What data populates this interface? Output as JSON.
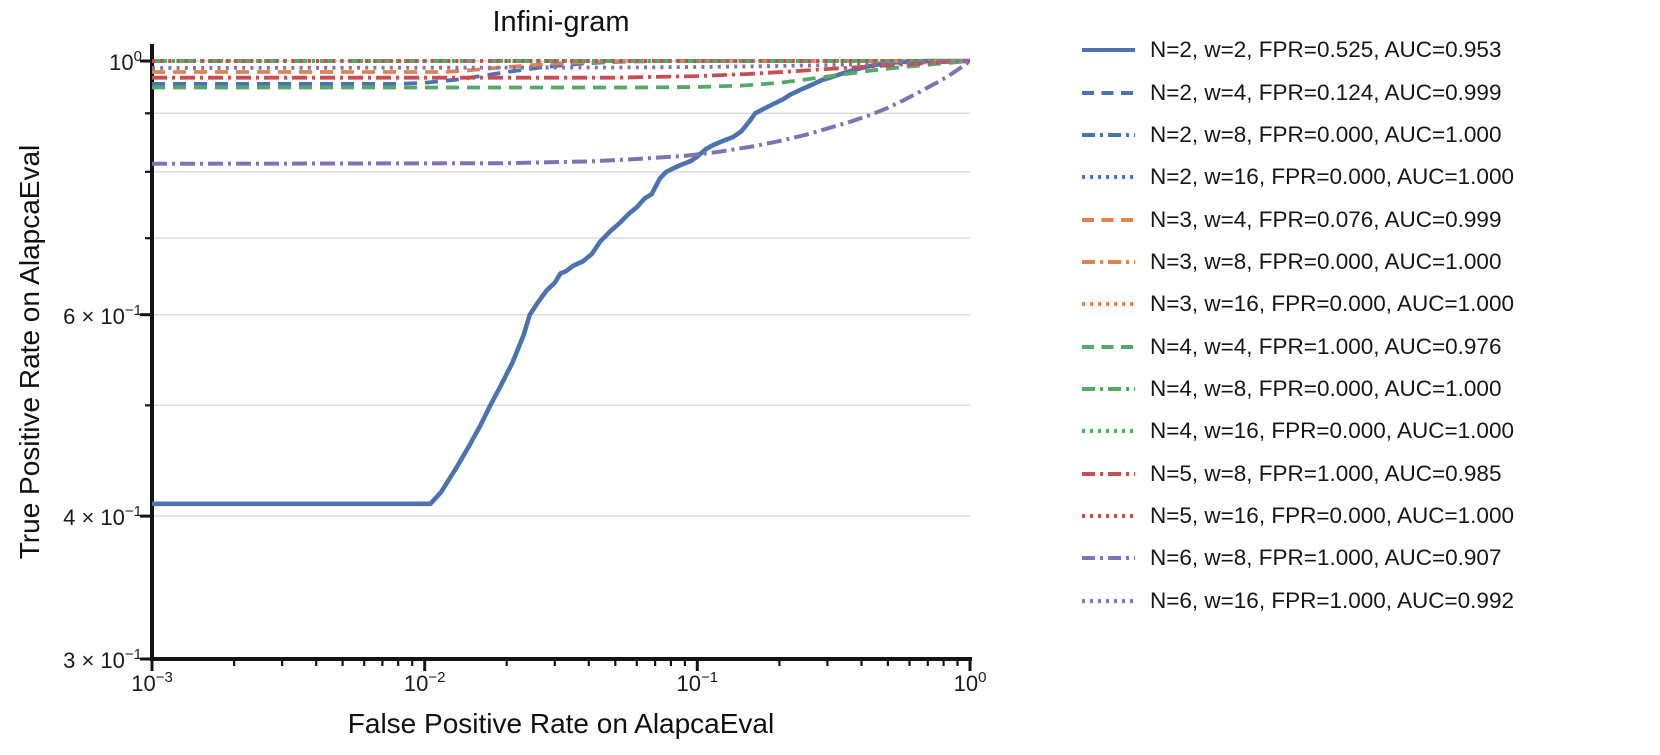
{
  "chart_data": {
    "type": "line",
    "title": "Infini-gram",
    "xlabel": "False Positive Rate on AlapcaEval",
    "ylabel": "True Positive Rate on AlapcaEval",
    "x_scale": "log",
    "y_scale": "log",
    "xlim": [
      0.001,
      1.0
    ],
    "ylim": [
      0.3,
      1.0
    ],
    "grid": "horizontal gridlines only",
    "legend_position": "outside right, no frame",
    "colors": {
      "blue": "#4C72B0",
      "orange": "#DD8452",
      "green": "#55A868",
      "red": "#C44E52",
      "purple": "#8172B3",
      "gridline": "#d9d9d9",
      "spine": "#141414",
      "text": "#1a1a1a"
    },
    "x_ticks": [
      {
        "value": 0.001,
        "prefix": "",
        "base": "10",
        "exp": "−3"
      },
      {
        "value": 0.01,
        "prefix": "",
        "base": "10",
        "exp": "−2"
      },
      {
        "value": 0.1,
        "prefix": "",
        "base": "10",
        "exp": "−1"
      },
      {
        "value": 1.0,
        "prefix": "",
        "base": "10",
        "exp": "0"
      }
    ],
    "x_minor_tick_values": [
      0.002,
      0.003,
      0.004,
      0.005,
      0.006,
      0.007,
      0.008,
      0.009,
      0.02,
      0.03,
      0.04,
      0.05,
      0.06,
      0.07,
      0.08,
      0.09,
      0.2,
      0.3,
      0.4,
      0.5,
      0.6,
      0.7,
      0.8,
      0.9
    ],
    "y_ticks": [
      {
        "value": 1.0,
        "prefix": "",
        "base": "10",
        "exp": "0"
      },
      {
        "value": 0.6,
        "prefix": "6 × ",
        "base": "10",
        "exp": "−1"
      },
      {
        "value": 0.4,
        "prefix": "4 × ",
        "base": "10",
        "exp": "−1"
      },
      {
        "value": 0.3,
        "prefix": "3 × ",
        "base": "10",
        "exp": "−1"
      }
    ],
    "y_minor_tick_values": [
      0.9,
      0.8,
      0.7,
      0.5
    ],
    "y_gridline_values": [
      1.0,
      0.9,
      0.8,
      0.7,
      0.6,
      0.5,
      0.4
    ],
    "series": [
      {
        "id": "n2-w2",
        "n": 2,
        "w": 2,
        "fpr": 0.525,
        "auc": 0.953,
        "label": "N=2, w=2, FPR=0.525, AUC=0.953",
        "color": "#4C72B0",
        "linestyle": "solid",
        "linewidth": 4.6,
        "points": [
          [
            0.001,
            0.41
          ],
          [
            0.0105,
            0.41
          ],
          [
            0.0115,
            0.42
          ],
          [
            0.013,
            0.44
          ],
          [
            0.0145,
            0.46
          ],
          [
            0.016,
            0.48
          ],
          [
            0.0174,
            0.5
          ],
          [
            0.019,
            0.52
          ],
          [
            0.021,
            0.545
          ],
          [
            0.023,
            0.575
          ],
          [
            0.0243,
            0.6
          ],
          [
            0.026,
            0.615
          ],
          [
            0.028,
            0.63
          ],
          [
            0.03,
            0.64
          ],
          [
            0.0315,
            0.652
          ],
          [
            0.033,
            0.655
          ],
          [
            0.035,
            0.662
          ],
          [
            0.038,
            0.668
          ],
          [
            0.041,
            0.678
          ],
          [
            0.044,
            0.695
          ],
          [
            0.048,
            0.71
          ],
          [
            0.052,
            0.722
          ],
          [
            0.056,
            0.735
          ],
          [
            0.06,
            0.745
          ],
          [
            0.064,
            0.758
          ],
          [
            0.068,
            0.765
          ],
          [
            0.07,
            0.775
          ],
          [
            0.073,
            0.79
          ],
          [
            0.077,
            0.8
          ],
          [
            0.082,
            0.806
          ],
          [
            0.088,
            0.812
          ],
          [
            0.095,
            0.818
          ],
          [
            0.1,
            0.825
          ],
          [
            0.108,
            0.838
          ],
          [
            0.115,
            0.845
          ],
          [
            0.125,
            0.852
          ],
          [
            0.135,
            0.858
          ],
          [
            0.145,
            0.868
          ],
          [
            0.155,
            0.885
          ],
          [
            0.163,
            0.9
          ],
          [
            0.175,
            0.908
          ],
          [
            0.19,
            0.917
          ],
          [
            0.205,
            0.925
          ],
          [
            0.22,
            0.935
          ],
          [
            0.24,
            0.944
          ],
          [
            0.26,
            0.952
          ],
          [
            0.285,
            0.962
          ],
          [
            0.31,
            0.968
          ],
          [
            0.34,
            0.975
          ],
          [
            0.38,
            0.983
          ],
          [
            0.42,
            0.989
          ],
          [
            0.47,
            0.994
          ],
          [
            0.53,
            0.997
          ],
          [
            0.6,
            0.999
          ],
          [
            0.7,
            1.0
          ],
          [
            1.0,
            1.0
          ]
        ]
      },
      {
        "id": "n2-w4",
        "n": 2,
        "w": 4,
        "fpr": 0.124,
        "auc": 0.999,
        "label": "N=2, w=4, FPR=0.124, AUC=0.999",
        "color": "#4C72B0",
        "linestyle": "dashed",
        "linewidth": 3.8,
        "points": [
          [
            0.001,
            0.955
          ],
          [
            0.008,
            0.955
          ],
          [
            0.01,
            0.957
          ],
          [
            0.013,
            0.963
          ],
          [
            0.016,
            0.97
          ],
          [
            0.02,
            0.978
          ],
          [
            0.025,
            0.985
          ],
          [
            0.03,
            0.99
          ],
          [
            0.038,
            0.995
          ],
          [
            0.048,
            0.998
          ],
          [
            0.065,
            0.9995
          ],
          [
            0.09,
            1.0
          ],
          [
            1.0,
            1.0
          ]
        ]
      },
      {
        "id": "n2-w8",
        "n": 2,
        "w": 8,
        "fpr": 0.0,
        "auc": 1.0,
        "label": "N=2, w=8, FPR=0.000, AUC=1.000",
        "color": "#4C72B0",
        "linestyle": "dashdot",
        "linewidth": 3.8,
        "points": [
          [
            0.001,
            1.0
          ],
          [
            1.0,
            1.0
          ]
        ]
      },
      {
        "id": "n2-w16",
        "n": 2,
        "w": 16,
        "fpr": 0.0,
        "auc": 1.0,
        "label": "N=2, w=16, FPR=0.000, AUC=1.000",
        "color": "#4C72B0",
        "linestyle": "dotted",
        "linewidth": 3.8,
        "points": [
          [
            0.001,
            1.0
          ],
          [
            1.0,
            1.0
          ]
        ]
      },
      {
        "id": "n3-w4",
        "n": 3,
        "w": 4,
        "fpr": 0.076,
        "auc": 0.999,
        "label": "N=3, w=4, FPR=0.076, AUC=0.999",
        "color": "#DD8452",
        "linestyle": "dashed",
        "linewidth": 3.8,
        "points": [
          [
            0.001,
            0.978
          ],
          [
            0.012,
            0.978
          ],
          [
            0.015,
            0.982
          ],
          [
            0.019,
            0.987
          ],
          [
            0.024,
            0.991
          ],
          [
            0.03,
            0.995
          ],
          [
            0.04,
            0.998
          ],
          [
            0.055,
            1.0
          ],
          [
            1.0,
            1.0
          ]
        ]
      },
      {
        "id": "n3-w8",
        "n": 3,
        "w": 8,
        "fpr": 0.0,
        "auc": 1.0,
        "label": "N=3, w=8, FPR=0.000, AUC=1.000",
        "color": "#DD8452",
        "linestyle": "dashdot",
        "linewidth": 3.8,
        "points": [
          [
            0.001,
            1.0
          ],
          [
            1.0,
            1.0
          ]
        ]
      },
      {
        "id": "n3-w16",
        "n": 3,
        "w": 16,
        "fpr": 0.0,
        "auc": 1.0,
        "label": "N=3, w=16, FPR=0.000, AUC=1.000",
        "color": "#DD8452",
        "linestyle": "dotted",
        "linewidth": 3.8,
        "points": [
          [
            0.001,
            1.0
          ],
          [
            1.0,
            1.0
          ]
        ]
      },
      {
        "id": "n4-w4",
        "n": 4,
        "w": 4,
        "fpr": 1.0,
        "auc": 0.976,
        "label": "N=4, w=4, FPR=1.000, AUC=0.976",
        "color": "#55A868",
        "linestyle": "dashed",
        "linewidth": 3.8,
        "points": [
          [
            0.001,
            0.948
          ],
          [
            0.06,
            0.948
          ],
          [
            0.1,
            0.949
          ],
          [
            0.15,
            0.952
          ],
          [
            0.2,
            0.957
          ],
          [
            0.28,
            0.967
          ],
          [
            0.36,
            0.975
          ],
          [
            0.45,
            0.982
          ],
          [
            0.55,
            0.987
          ],
          [
            0.68,
            0.992
          ],
          [
            0.82,
            0.996
          ],
          [
            1.0,
            1.0
          ]
        ]
      },
      {
        "id": "n4-w8",
        "n": 4,
        "w": 8,
        "fpr": 0.0,
        "auc": 1.0,
        "label": "N=4, w=8, FPR=0.000, AUC=1.000",
        "color": "#55A868",
        "linestyle": "dashdot",
        "linewidth": 3.8,
        "points": [
          [
            0.001,
            1.0
          ],
          [
            1.0,
            1.0
          ]
        ]
      },
      {
        "id": "n4-w16",
        "n": 4,
        "w": 16,
        "fpr": 0.0,
        "auc": 1.0,
        "label": "N=4, w=16, FPR=0.000, AUC=1.000",
        "color": "#55A868",
        "linestyle": "dotted",
        "linewidth": 3.8,
        "points": [
          [
            0.001,
            1.0
          ],
          [
            1.0,
            1.0
          ]
        ]
      },
      {
        "id": "n5-w8",
        "n": 5,
        "w": 8,
        "fpr": 1.0,
        "auc": 0.985,
        "label": "N=5, w=8, FPR=1.000, AUC=0.985",
        "color": "#C44E52",
        "linestyle": "dashdot",
        "linewidth": 3.8,
        "points": [
          [
            0.001,
            0.967
          ],
          [
            0.05,
            0.967
          ],
          [
            0.1,
            0.97
          ],
          [
            0.15,
            0.974
          ],
          [
            0.22,
            0.979
          ],
          [
            0.3,
            0.984
          ],
          [
            0.4,
            0.988
          ],
          [
            0.52,
            0.992
          ],
          [
            0.66,
            0.995
          ],
          [
            0.82,
            0.998
          ],
          [
            1.0,
            1.0
          ]
        ]
      },
      {
        "id": "n5-w16",
        "n": 5,
        "w": 16,
        "fpr": 0.0,
        "auc": 1.0,
        "label": "N=5, w=16, FPR=0.000, AUC=1.000",
        "color": "#C44E52",
        "linestyle": "dotted",
        "linewidth": 3.8,
        "points": [
          [
            0.001,
            1.0
          ],
          [
            1.0,
            1.0
          ]
        ]
      },
      {
        "id": "n6-w8",
        "n": 6,
        "w": 8,
        "fpr": 1.0,
        "auc": 0.907,
        "label": "N=6, w=8, FPR=1.000, AUC=0.907",
        "color": "#8172B3",
        "linestyle": "dashdot",
        "linewidth": 4.0,
        "points": [
          [
            0.001,
            0.813
          ],
          [
            0.02,
            0.814
          ],
          [
            0.04,
            0.817
          ],
          [
            0.06,
            0.821
          ],
          [
            0.09,
            0.826
          ],
          [
            0.12,
            0.833
          ],
          [
            0.16,
            0.842
          ],
          [
            0.2,
            0.851
          ],
          [
            0.25,
            0.862
          ],
          [
            0.3,
            0.873
          ],
          [
            0.36,
            0.884
          ],
          [
            0.43,
            0.897
          ],
          [
            0.5,
            0.91
          ],
          [
            0.57,
            0.924
          ],
          [
            0.65,
            0.939
          ],
          [
            0.73,
            0.953
          ],
          [
            0.82,
            0.968
          ],
          [
            0.91,
            0.984
          ],
          [
            1.0,
            1.0
          ]
        ]
      },
      {
        "id": "n6-w16",
        "n": 6,
        "w": 16,
        "fpr": 1.0,
        "auc": 0.992,
        "label": "N=6, w=16, FPR=1.000, AUC=0.992",
        "color": "#8172B3",
        "linestyle": "dotted",
        "linewidth": 3.8,
        "points": [
          [
            0.001,
            0.986
          ],
          [
            0.05,
            0.987
          ],
          [
            0.1,
            0.988
          ],
          [
            0.2,
            0.99
          ],
          [
            0.32,
            0.992
          ],
          [
            0.45,
            0.994
          ],
          [
            0.6,
            0.996
          ],
          [
            0.75,
            0.998
          ],
          [
            0.9,
            0.999
          ],
          [
            1.0,
            1.0
          ]
        ]
      }
    ]
  }
}
